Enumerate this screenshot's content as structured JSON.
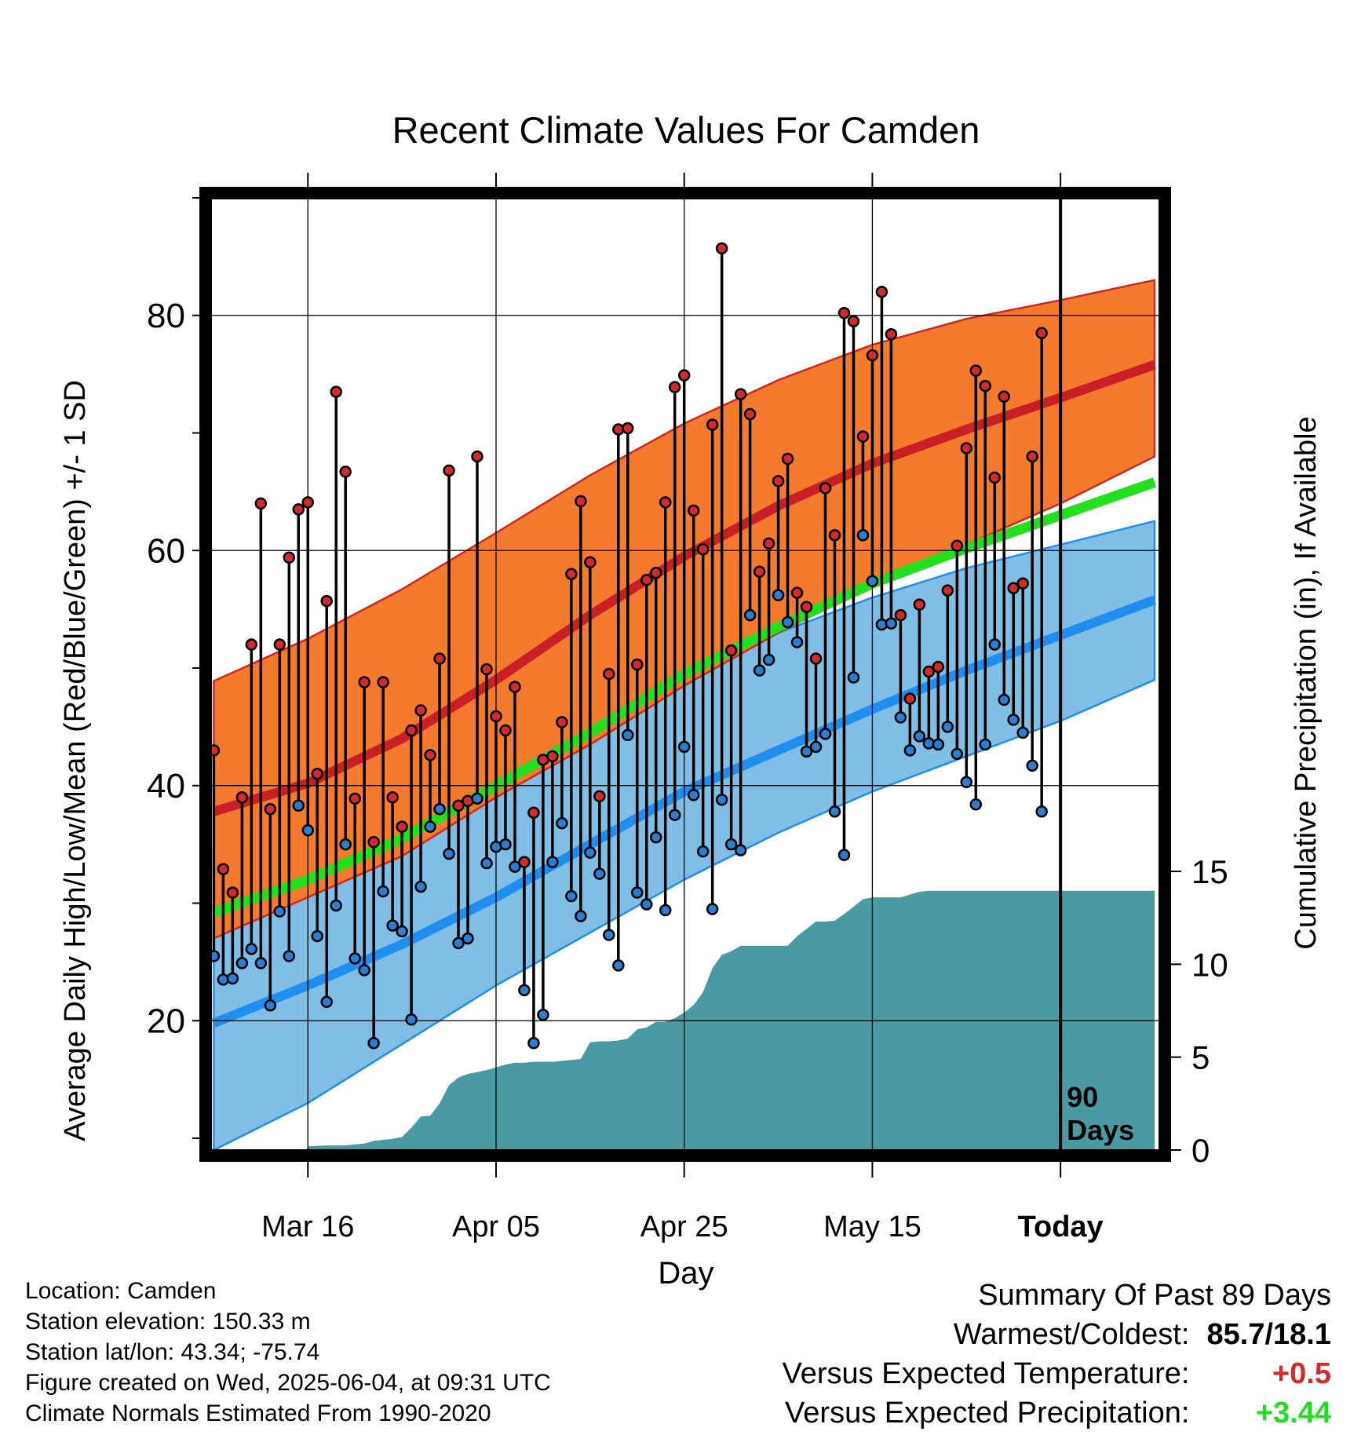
{
  "chart_data": {
    "type": "line",
    "title": "Recent Climate Values For Camden",
    "xlabel": "Day",
    "ylabel": "Average Daily High/Low/Mean (Red/Blue/Green) +/- 1 SD",
    "y2label": "Cumulative Precipitation (in), If Available",
    "x_tick_labels": [
      "Mar 16",
      "Apr 05",
      "Apr 25",
      "May 15",
      "Today"
    ],
    "x_tick_days": [
      10,
      30,
      50,
      70,
      90
    ],
    "x_range": [
      -0.2,
      100.5
    ],
    "y_range": [
      9,
      90
    ],
    "y_ticks": [
      20,
      40,
      60,
      80
    ],
    "y2_range": [
      0,
      15.5
    ],
    "y2_ticks": [
      0,
      5,
      10,
      15
    ],
    "today_marker": {
      "day": 90,
      "label_line1": "90",
      "label_line2": "Days"
    },
    "grid": true,
    "normals": {
      "days": [
        0,
        10,
        20,
        30,
        40,
        50,
        60,
        70,
        80,
        90,
        100
      ],
      "high_mean": [
        37.8,
        40.2,
        44.0,
        49.0,
        54.5,
        59.5,
        63.8,
        67.4,
        70.3,
        73.0,
        75.8
      ],
      "high_upper": [
        48.9,
        52.5,
        56.7,
        61.5,
        66.4,
        70.8,
        74.5,
        77.5,
        79.7,
        81.3,
        83.0
      ],
      "high_lower": [
        27.0,
        30.5,
        34.0,
        39.0,
        43.5,
        48.5,
        53.0,
        57.0,
        60.5,
        64.0,
        68.0
      ],
      "mean": [
        29.2,
        32.0,
        35.5,
        40.0,
        44.5,
        49.5,
        53.5,
        57.2,
        60.2,
        63.0,
        65.8
      ],
      "low_mean": [
        19.8,
        23.0,
        26.5,
        30.5,
        35.0,
        39.5,
        43.0,
        46.5,
        49.8,
        52.8,
        55.8
      ],
      "low_upper": [
        31.5,
        34.5,
        37.5,
        41.0,
        45.5,
        49.5,
        53.0,
        56.0,
        58.5,
        60.5,
        62.5
      ],
      "low_lower": [
        9.0,
        13.0,
        18.0,
        23.0,
        27.5,
        32.0,
        36.0,
        39.5,
        42.5,
        45.5,
        49.0
      ]
    },
    "series": [
      {
        "name": "High",
        "color": "#d42a2a",
        "days": [
          0,
          1,
          2,
          3,
          4,
          5,
          6,
          7,
          8,
          9,
          10,
          11,
          12,
          13,
          14,
          15,
          16,
          17,
          18,
          19,
          20,
          21,
          22,
          23,
          24,
          25,
          26,
          27,
          28,
          29,
          30,
          31,
          32,
          33,
          34,
          35,
          36,
          37,
          38,
          39,
          40,
          41,
          42,
          43,
          44,
          45,
          46,
          47,
          48,
          49,
          50,
          51,
          52,
          53,
          54,
          55,
          56,
          57,
          58,
          59,
          60,
          61,
          62,
          63,
          64,
          65,
          66,
          67,
          68,
          69,
          70,
          71,
          72,
          73,
          74,
          75,
          76,
          77,
          78,
          79,
          80,
          81,
          82,
          83,
          84,
          85,
          86,
          87,
          88,
          89
        ],
        "values": [
          43.0,
          32.9,
          30.9,
          39.0,
          52.0,
          64.0,
          38.0,
          52.0,
          59.4,
          63.5,
          64.1,
          41.0,
          55.7,
          73.5,
          66.7,
          38.9,
          48.8,
          35.2,
          48.8,
          39.0,
          36.5,
          44.7,
          46.4,
          42.6,
          50.8,
          66.8,
          38.3,
          38.7,
          68.0,
          49.9,
          45.9,
          44.7,
          48.4,
          33.5,
          37.7,
          42.2,
          42.5,
          45.4,
          58.0,
          64.2,
          59.0,
          39.1,
          49.5,
          70.3,
          70.4,
          50.3,
          57.5,
          58.1,
          64.1,
          73.9,
          74.9,
          63.4,
          60.1,
          70.7,
          85.7,
          51.5,
          73.3,
          71.6,
          58.2,
          60.6,
          65.9,
          67.8,
          56.4,
          55.2,
          50.8,
          65.3,
          61.3,
          80.2,
          79.5,
          69.7,
          76.6,
          82.0,
          78.4,
          54.5,
          47.4,
          55.4,
          49.7,
          50.1,
          56.6,
          60.4,
          68.7,
          75.3,
          74.0,
          66.2,
          73.1,
          56.8,
          57.2,
          68.0,
          78.5,
          null
        ],
        "endpoints": "high"
      },
      {
        "name": "Low",
        "color": "#2b7fd0",
        "days": [
          0,
          1,
          2,
          3,
          4,
          5,
          6,
          7,
          8,
          9,
          10,
          11,
          12,
          13,
          14,
          15,
          16,
          17,
          18,
          19,
          20,
          21,
          22,
          23,
          24,
          25,
          26,
          27,
          28,
          29,
          30,
          31,
          32,
          33,
          34,
          35,
          36,
          37,
          38,
          39,
          40,
          41,
          42,
          43,
          44,
          45,
          46,
          47,
          48,
          49,
          50,
          51,
          52,
          53,
          54,
          55,
          56,
          57,
          58,
          59,
          60,
          61,
          62,
          63,
          64,
          65,
          66,
          67,
          68,
          69,
          70,
          71,
          72,
          73,
          74,
          75,
          76,
          77,
          78,
          79,
          80,
          81,
          82,
          83,
          84,
          85,
          86,
          87,
          88,
          89
        ],
        "values": [
          25.5,
          23.5,
          23.6,
          24.9,
          26.1,
          24.9,
          21.3,
          29.3,
          25.5,
          38.3,
          36.2,
          27.2,
          21.6,
          29.8,
          35.0,
          25.3,
          24.3,
          18.1,
          31.0,
          28.1,
          27.6,
          20.1,
          31.4,
          36.5,
          38.0,
          34.2,
          26.6,
          27.0,
          38.9,
          33.4,
          34.8,
          35.0,
          33.1,
          22.6,
          18.1,
          20.5,
          33.5,
          36.8,
          30.6,
          28.9,
          34.3,
          32.5,
          27.3,
          24.7,
          44.3,
          30.9,
          29.9,
          35.6,
          29.4,
          37.5,
          43.3,
          39.2,
          34.4,
          29.5,
          38.8,
          35.0,
          34.5,
          54.5,
          49.8,
          50.7,
          56.2,
          53.9,
          52.2,
          42.9,
          43.3,
          44.4,
          37.8,
          34.1,
          49.2,
          61.3,
          57.4,
          53.7,
          53.8,
          45.8,
          43.0,
          44.2,
          43.6,
          43.5,
          45.0,
          42.7,
          40.3,
          38.4,
          43.5,
          52.0,
          47.3,
          45.6,
          44.5,
          41.7,
          37.8,
          null
        ]
      }
    ],
    "precipitation": {
      "name": "Cumulative Precipitation",
      "color": "#4a9aa4",
      "days": [
        9.8,
        10,
        12,
        14,
        15,
        16,
        17,
        18,
        19,
        20,
        21,
        22,
        23,
        24,
        25,
        26,
        27,
        28,
        29,
        30,
        31,
        32,
        33,
        34,
        35,
        36,
        37,
        38,
        39,
        40,
        41,
        42,
        43,
        44,
        45,
        46,
        47,
        48,
        49,
        50,
        51,
        52,
        53,
        54,
        55,
        56,
        57,
        58,
        59,
        60,
        61,
        62,
        63,
        64,
        65,
        66,
        67,
        68,
        69,
        70,
        71,
        72,
        73,
        74,
        75,
        76,
        77,
        78,
        79,
        80,
        81,
        82,
        83,
        84,
        85,
        86,
        87,
        88,
        89,
        90,
        100
      ],
      "values": [
        0,
        0.2,
        0.25,
        0.25,
        0.3,
        0.35,
        0.5,
        0.55,
        0.6,
        0.7,
        1.2,
        1.8,
        1.85,
        2.5,
        3.5,
        3.9,
        4.1,
        4.2,
        4.3,
        4.45,
        4.6,
        4.7,
        4.7,
        4.75,
        4.75,
        4.75,
        4.8,
        4.85,
        4.9,
        5.8,
        5.85,
        5.85,
        5.9,
        6.0,
        6.5,
        6.6,
        6.9,
        6.9,
        7.1,
        7.4,
        7.8,
        8.5,
        9.8,
        10.5,
        10.7,
        11.0,
        11.0,
        11.0,
        11.0,
        11.0,
        11.0,
        11.5,
        11.9,
        12.3,
        12.3,
        12.35,
        12.7,
        13.1,
        13.5,
        13.6,
        13.6,
        13.6,
        13.6,
        13.75,
        13.9,
        13.95,
        13.95,
        13.95,
        13.95,
        13.95,
        13.95,
        13.95,
        13.95,
        13.95,
        13.95,
        13.95,
        13.95,
        13.95,
        13.95,
        13.95,
        13.95
      ]
    },
    "colors": {
      "high_band": "#f47a2e",
      "high_line": "#c91f26",
      "mean_line": "#22e01e",
      "low_band": "#80bee6",
      "low_line": "#1e8ff0",
      "precip": "#4a9aa4"
    }
  },
  "metadata": {
    "location": "Location: Camden",
    "elevation": "Station elevation: 150.33 m",
    "latlon": "Station lat/lon: 43.34; -75.74",
    "created": "Figure created on Wed, 2025-06-04, at 09:31 UTC",
    "normals": "Climate Normals Estimated From 1990-2020"
  },
  "summary": {
    "heading": "Summary Of Past 89 Days",
    "warmest_label": "Warmest/Coldest:",
    "warmest_value": "85.7/18.1",
    "temp_label": "Versus Expected Temperature:",
    "temp_value": "+0.5",
    "temp_color": "#d42a2a",
    "precip_label": "Versus Expected Precipitation:",
    "precip_value": "+3.44",
    "precip_color": "#22dd22"
  }
}
